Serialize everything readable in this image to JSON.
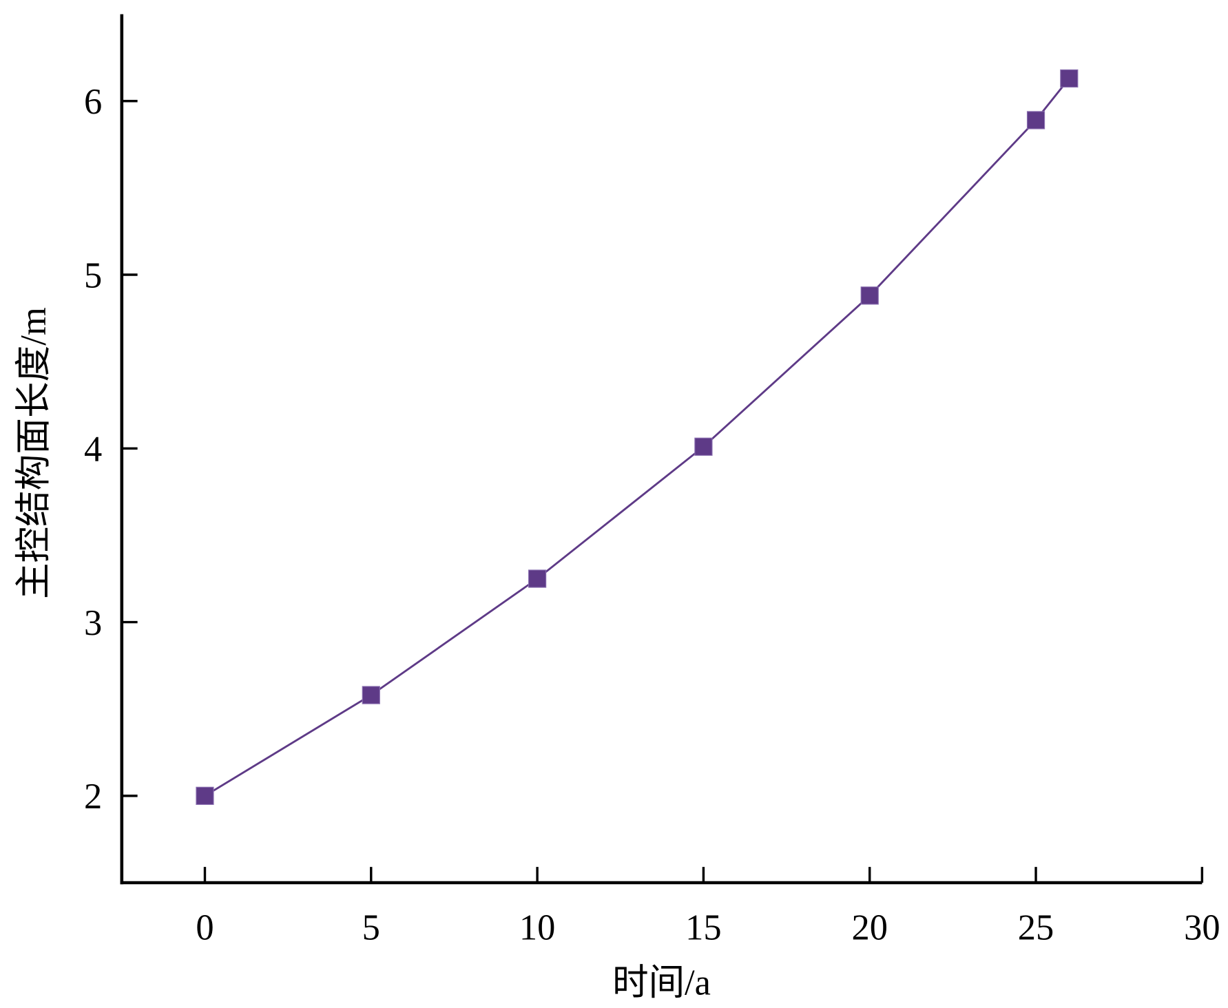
{
  "chart_data": {
    "type": "line",
    "x_label": "时间/a",
    "y_label": "主控结构面长度/m",
    "x": [
      0,
      5,
      10,
      15,
      20,
      25,
      26
    ],
    "series": [
      {
        "name": "主控结构面长度",
        "color": "#5e3a87",
        "values": [
          2.0,
          2.58,
          3.25,
          4.01,
          4.88,
          5.89,
          6.13
        ]
      }
    ],
    "xlim": [
      -2.5,
      30
    ],
    "ylim": [
      1.5,
      6.5
    ],
    "xticks": [
      0,
      5,
      10,
      15,
      20,
      25,
      30
    ],
    "yticks": [
      2,
      3,
      4,
      5,
      6
    ],
    "grid": false,
    "legend": false
  }
}
